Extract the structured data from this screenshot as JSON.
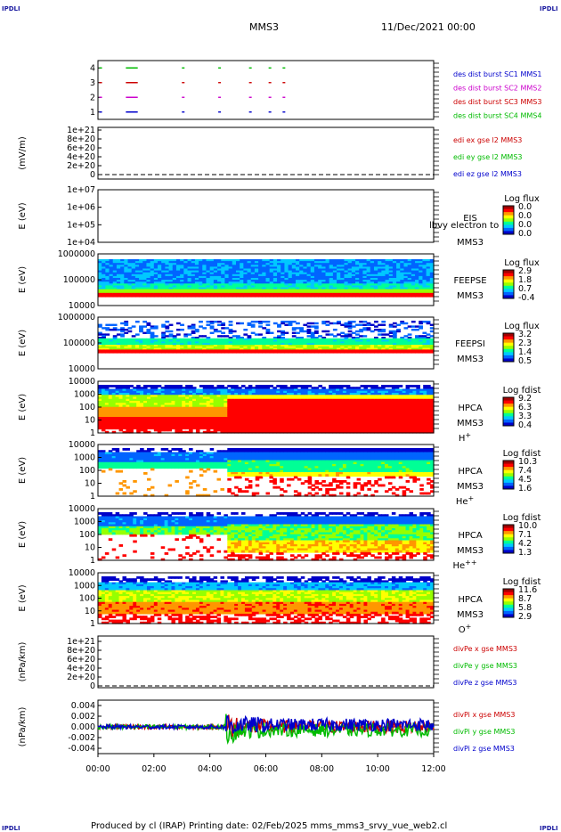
{
  "header": {
    "title": "MMS3",
    "date": "11/Dec/2021 00:00",
    "corner_mark": "IPDLI"
  },
  "footer": {
    "text": "Produced by cl (IRAP)   Printing date: 02/Feb/2025   mms_mms3_srvy_vue_web2.cl"
  },
  "time_axis": {
    "ticks": [
      "00:00",
      "02:00",
      "04:00",
      "06:00",
      "08:00",
      "10:00",
      "12:00"
    ],
    "range_hours": [
      0,
      12
    ]
  },
  "colorbar_colors": [
    "#0000c8",
    "#0064ff",
    "#00c8ff",
    "#00ff96",
    "#96ff00",
    "#ffff00",
    "#ff9600",
    "#ff0000",
    "#a00000"
  ],
  "chart_data": [
    {
      "type": "scatter",
      "panel": "burst",
      "ylim": [
        0.5,
        4.5
      ],
      "yticks": [
        "4",
        "3",
        "2",
        "1"
      ],
      "series": [
        {
          "name": "des dist burst SC1 MMS1",
          "color": "#0000cc",
          "y": 1,
          "x_hours": [
            0.05,
            1.0,
            1.1,
            1.2,
            1.3,
            3.0,
            4.3,
            5.4,
            6.1,
            6.6
          ]
        },
        {
          "name": "des dist burst SC2 MMS2",
          "color": "#cc00cc",
          "y": 2,
          "x_hours": [
            0.05,
            1.0,
            1.1,
            1.2,
            1.3,
            3.0,
            4.3,
            5.4,
            6.1,
            6.6
          ]
        },
        {
          "name": "des dist burst SC3 MMS3",
          "color": "#cc0000",
          "y": 3,
          "x_hours": [
            0.05,
            1.0,
            1.1,
            1.2,
            1.3,
            3.0,
            4.3,
            5.4,
            6.1,
            6.6
          ]
        },
        {
          "name": "des dist burst SC4 MMS4",
          "color": "#00bb00",
          "y": 4,
          "x_hours": [
            0.05,
            1.0,
            1.1,
            1.2,
            1.3,
            3.0,
            4.3,
            5.4,
            6.1,
            6.6
          ]
        }
      ]
    },
    {
      "type": "line",
      "panel": "edi",
      "ylabel": "(mV/m)",
      "yticks": [
        "1e+21",
        "8e+20",
        "6e+20",
        "4e+20",
        "2e+20",
        "0"
      ],
      "ylim": [
        0,
        1e+21
      ],
      "series": [
        {
          "name": "edi ex gse l2 MMS3",
          "color": "#cc0000"
        },
        {
          "name": "edi ey gse l2 MMS3",
          "color": "#00bb00"
        },
        {
          "name": "edi ez gse l2 MMS3",
          "color": "#0000cc"
        }
      ]
    },
    {
      "type": "heatmap",
      "panel": "eis",
      "ylabel": "E (eV)",
      "yticks": [
        "1e+07",
        "1e+06",
        "1e+05",
        "1e+04"
      ],
      "instrument": "EIS",
      "sc": "MMS3",
      "species": "lbvy electron to",
      "cbar_title": "Log flux",
      "cbar_values": [
        "0.0",
        "0.0",
        "0.0",
        "0.0"
      ]
    },
    {
      "type": "heatmap",
      "panel": "feepse",
      "ylabel": "E (eV)",
      "yticks": [
        "1000000",
        "100000",
        "10000"
      ],
      "instrument": "FEEPSE",
      "sc": "MMS3",
      "cbar_title": "Log flux",
      "cbar_values": [
        "2.9",
        "1.8",
        "0.7",
        "-0.4"
      ]
    },
    {
      "type": "heatmap",
      "panel": "feepsi",
      "ylabel": "E (eV)",
      "yticks": [
        "1000000",
        "100000",
        "10000"
      ],
      "instrument": "FEEPSI",
      "sc": "MMS3",
      "cbar_title": "Log flux",
      "cbar_values": [
        "3.2",
        "2.3",
        "1.4",
        "0.5"
      ]
    },
    {
      "type": "heatmap",
      "panel": "hpca_h",
      "ylabel": "E (eV)",
      "yticks": [
        "10000",
        "1000",
        "100",
        "10",
        "1"
      ],
      "instrument": "HPCA",
      "sc": "MMS3",
      "species": "H",
      "species_sup": "+",
      "cbar_title": "Log fdist",
      "cbar_values": [
        "9.2",
        "6.3",
        "3.3",
        "0.4"
      ]
    },
    {
      "type": "heatmap",
      "panel": "hpca_he",
      "ylabel": "E (eV)",
      "yticks": [
        "10000",
        "1000",
        "100",
        "10",
        "1"
      ],
      "instrument": "HPCA",
      "sc": "MMS3",
      "species": "He",
      "species_sup": "+",
      "cbar_title": "Log fdist",
      "cbar_values": [
        "10.3",
        "7.4",
        "4.5",
        "1.6"
      ]
    },
    {
      "type": "heatmap",
      "panel": "hpca_hepp",
      "ylabel": "E (eV)",
      "yticks": [
        "10000",
        "1000",
        "100",
        "10",
        "1"
      ],
      "instrument": "HPCA",
      "sc": "MMS3",
      "species": "He",
      "species_sup": "++",
      "cbar_title": "Log fdist",
      "cbar_values": [
        "10.0",
        "7.1",
        "4.2",
        "1.3"
      ]
    },
    {
      "type": "heatmap",
      "panel": "hpca_o",
      "ylabel": "E (eV)",
      "yticks": [
        "10000",
        "1000",
        "100",
        "10",
        "1"
      ],
      "instrument": "HPCA",
      "sc": "MMS3",
      "species": "O",
      "species_sup": "+",
      "cbar_title": "Log fdist",
      "cbar_values": [
        "11.6",
        "8.7",
        "5.8",
        "2.9"
      ]
    },
    {
      "type": "line",
      "panel": "divpe",
      "ylabel": "(nPa/km)",
      "yticks": [
        "1e+21",
        "8e+20",
        "6e+20",
        "4e+20",
        "2e+20",
        "0"
      ],
      "ylim": [
        0,
        1e+21
      ],
      "series": [
        {
          "name": "divPe x gse MMS3",
          "color": "#cc0000"
        },
        {
          "name": "divPe y gse MMS3",
          "color": "#00bb00"
        },
        {
          "name": "divPe z gse MMS3",
          "color": "#0000cc"
        }
      ]
    },
    {
      "type": "line",
      "panel": "divpi",
      "ylabel": "(nPa/km)",
      "yticks": [
        "0.004",
        "0.002",
        "0.000",
        "-0.002",
        "-0.004"
      ],
      "ylim": [
        -0.005,
        0.005
      ],
      "series": [
        {
          "name": "divPi x gse MMS3",
          "color": "#cc0000"
        },
        {
          "name": "divPi y gse MMS3",
          "color": "#00bb00"
        },
        {
          "name": "divPi z gse MMS3",
          "color": "#0000cc"
        }
      ]
    }
  ]
}
